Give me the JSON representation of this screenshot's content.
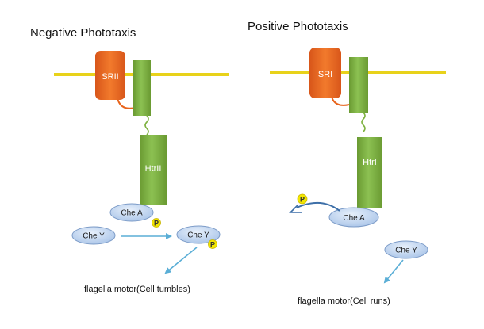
{
  "negative": {
    "title": "Negative Phototaxis",
    "receptor_label": "SRII",
    "transducer_label": "HtrII",
    "chea_label": "Che A",
    "p_label": "P",
    "chey_free_label": "Che Y",
    "chey_p_label": "Che Y",
    "p2_label": "P",
    "outcome": "flagella motor(Cell tumbles)"
  },
  "positive": {
    "title": "Positive Phototaxis",
    "receptor_label": "SRI",
    "transducer_label": "HtrI",
    "chea_label": "Che A",
    "p_label": "P",
    "chey_label": "Che Y",
    "outcome": "flagella motor(Cell runs)"
  },
  "colors": {
    "membrane": "#e8d21a",
    "receptor": "#e8641c",
    "transducer": "#7fb241",
    "protein": "#bcd3ee",
    "protein_stroke": "#7d9cc8",
    "phosphate": "#f2e600",
    "arrow": "#5aaed6"
  }
}
